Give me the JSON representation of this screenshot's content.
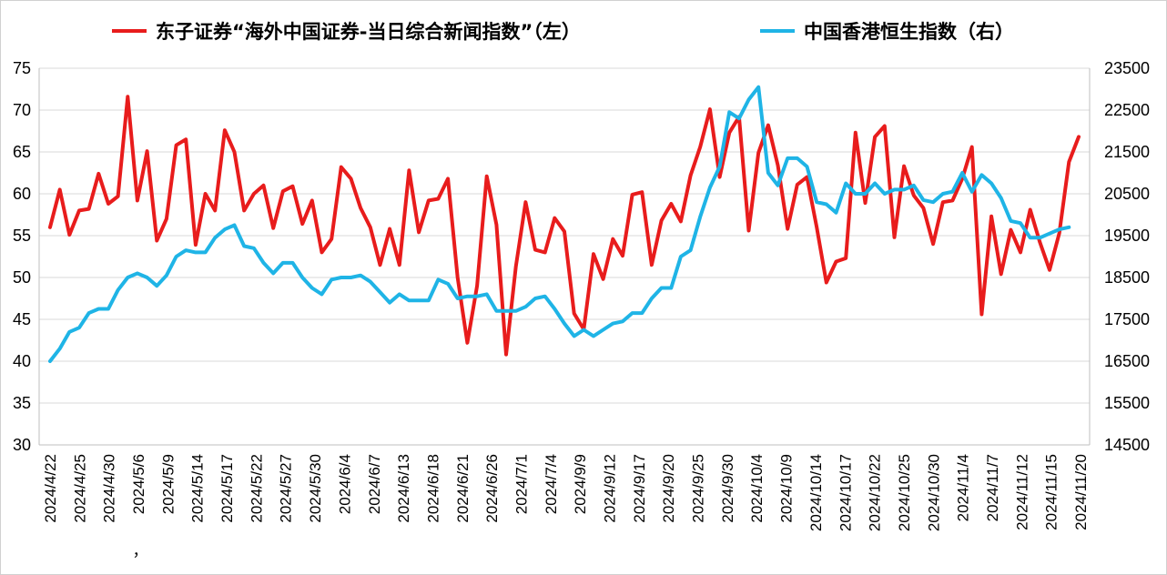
{
  "chart_data": {
    "type": "line",
    "legend": {
      "position": "top",
      "entries": [
        {
          "label": "东子证券“海外中国证券-当日综合新闻指数”（左）",
          "color": "#e81c1c"
        },
        {
          "label": "中国香港恒生指数（右）",
          "color": "#1fb4e6"
        }
      ]
    },
    "y_left": {
      "min": 30,
      "max": 75,
      "step": 5,
      "ticks": [
        "30",
        "35",
        "40",
        "45",
        "50",
        "55",
        "60",
        "65",
        "70",
        "75"
      ]
    },
    "y_right": {
      "min": 14500,
      "max": 23500,
      "step": 1000,
      "ticks": [
        "14500",
        "15500",
        "16500",
        "17500",
        "18500",
        "19500",
        "20500",
        "21500",
        "22500",
        "23500"
      ]
    },
    "x_tick_labels": [
      "2024/4/22",
      "2024/4/25",
      "2024/4/30",
      "2024/5/6",
      "2024/5/9",
      "2024/5/14",
      "2024/5/17",
      "2024/5/22",
      "2024/5/27",
      "2024/5/30",
      "2024/6/4",
      "2024/6/7",
      "2024/6/13",
      "2024/6/18",
      "2024/6/21",
      "2024/6/26",
      "2024/7/1",
      "2024/7/4",
      "2024/9/9",
      "2024/9/12",
      "2024/9/17",
      "2024/9/20",
      "2024/9/25",
      "2024/9/30",
      "2024/10/4",
      "2024/10/9",
      "2024/10/14",
      "2024/10/17",
      "2024/10/22",
      "2024/10/25",
      "2024/10/30",
      "2024/11/4",
      "2024/11/7",
      "2024/11/12",
      "2024/11/15",
      "2024/11/20"
    ],
    "extra_mark": "，",
    "grid": true,
    "series": [
      {
        "name": "东子证券“海外中国证券-当日综合新闻指数”（左）",
        "axis": "left",
        "color": "#e81c1c",
        "values": [
          56.0,
          60.5,
          55.1,
          58.0,
          58.2,
          62.4,
          58.8,
          59.7,
          71.6,
          59.2,
          65.1,
          54.4,
          57.0,
          65.8,
          66.5,
          53.9,
          60.0,
          58.0,
          67.6,
          65.0,
          58.0,
          60.0,
          61.0,
          55.9,
          60.3,
          60.9,
          56.4,
          59.2,
          53.0,
          54.6,
          63.2,
          61.8,
          58.3,
          56.0,
          51.5,
          55.8,
          51.5,
          62.8,
          55.4,
          59.2,
          59.4,
          61.8,
          50.0,
          42.2,
          49.0,
          62.1,
          56.3,
          40.8,
          51.3,
          59.0,
          53.3,
          53.0,
          57.1,
          55.5,
          45.7,
          43.8,
          52.8,
          49.8,
          54.6,
          52.6,
          59.9,
          60.2,
          51.5,
          56.8,
          58.8,
          56.7,
          62.2,
          65.6,
          70.1,
          62.0,
          67.3,
          69.2,
          55.6,
          64.9,
          68.2,
          63.4,
          55.8,
          61.1,
          62.0,
          56.0,
          49.4,
          51.9,
          52.3,
          67.3,
          58.9,
          66.8,
          68.1,
          54.8,
          63.3,
          59.8,
          58.3,
          54.0,
          59.0,
          59.2,
          61.8,
          65.6,
          45.6,
          57.3,
          50.4,
          55.7,
          53.0,
          58.1,
          54.2,
          50.9,
          55.3,
          63.8,
          66.8
        ]
      },
      {
        "name": "中国香港恒生指数（右）",
        "axis": "right",
        "color": "#1fb4e6",
        "values": [
          16500,
          16800,
          17200,
          17300,
          17650,
          17750,
          17750,
          18200,
          18500,
          18600,
          18500,
          18300,
          18550,
          19000,
          19150,
          19100,
          19100,
          19450,
          19650,
          19750,
          19250,
          19200,
          18850,
          18600,
          18850,
          18850,
          18500,
          18250,
          18100,
          18450,
          18500,
          18500,
          18550,
          18400,
          18150,
          17900,
          18100,
          17950,
          17950,
          17950,
          18450,
          18350,
          18000,
          18050,
          18050,
          18100,
          17700,
          17700,
          17700,
          17800,
          18000,
          18050,
          17750,
          17400,
          17100,
          17250,
          17100,
          17250,
          17400,
          17450,
          17650,
          17650,
          18000,
          18250,
          18250,
          19000,
          19150,
          19950,
          20650,
          21150,
          22450,
          22300,
          22750,
          23050,
          21000,
          20700,
          21350,
          21350,
          21150,
          20300,
          20250,
          20050,
          20750,
          20500,
          20500,
          20750,
          20500,
          20600,
          20600,
          20700,
          20350,
          20300,
          20500,
          20550,
          21000,
          20550,
          20950,
          20750,
          20400,
          19850,
          19800,
          19450,
          19450,
          19550,
          19650,
          19700
        ]
      }
    ]
  }
}
